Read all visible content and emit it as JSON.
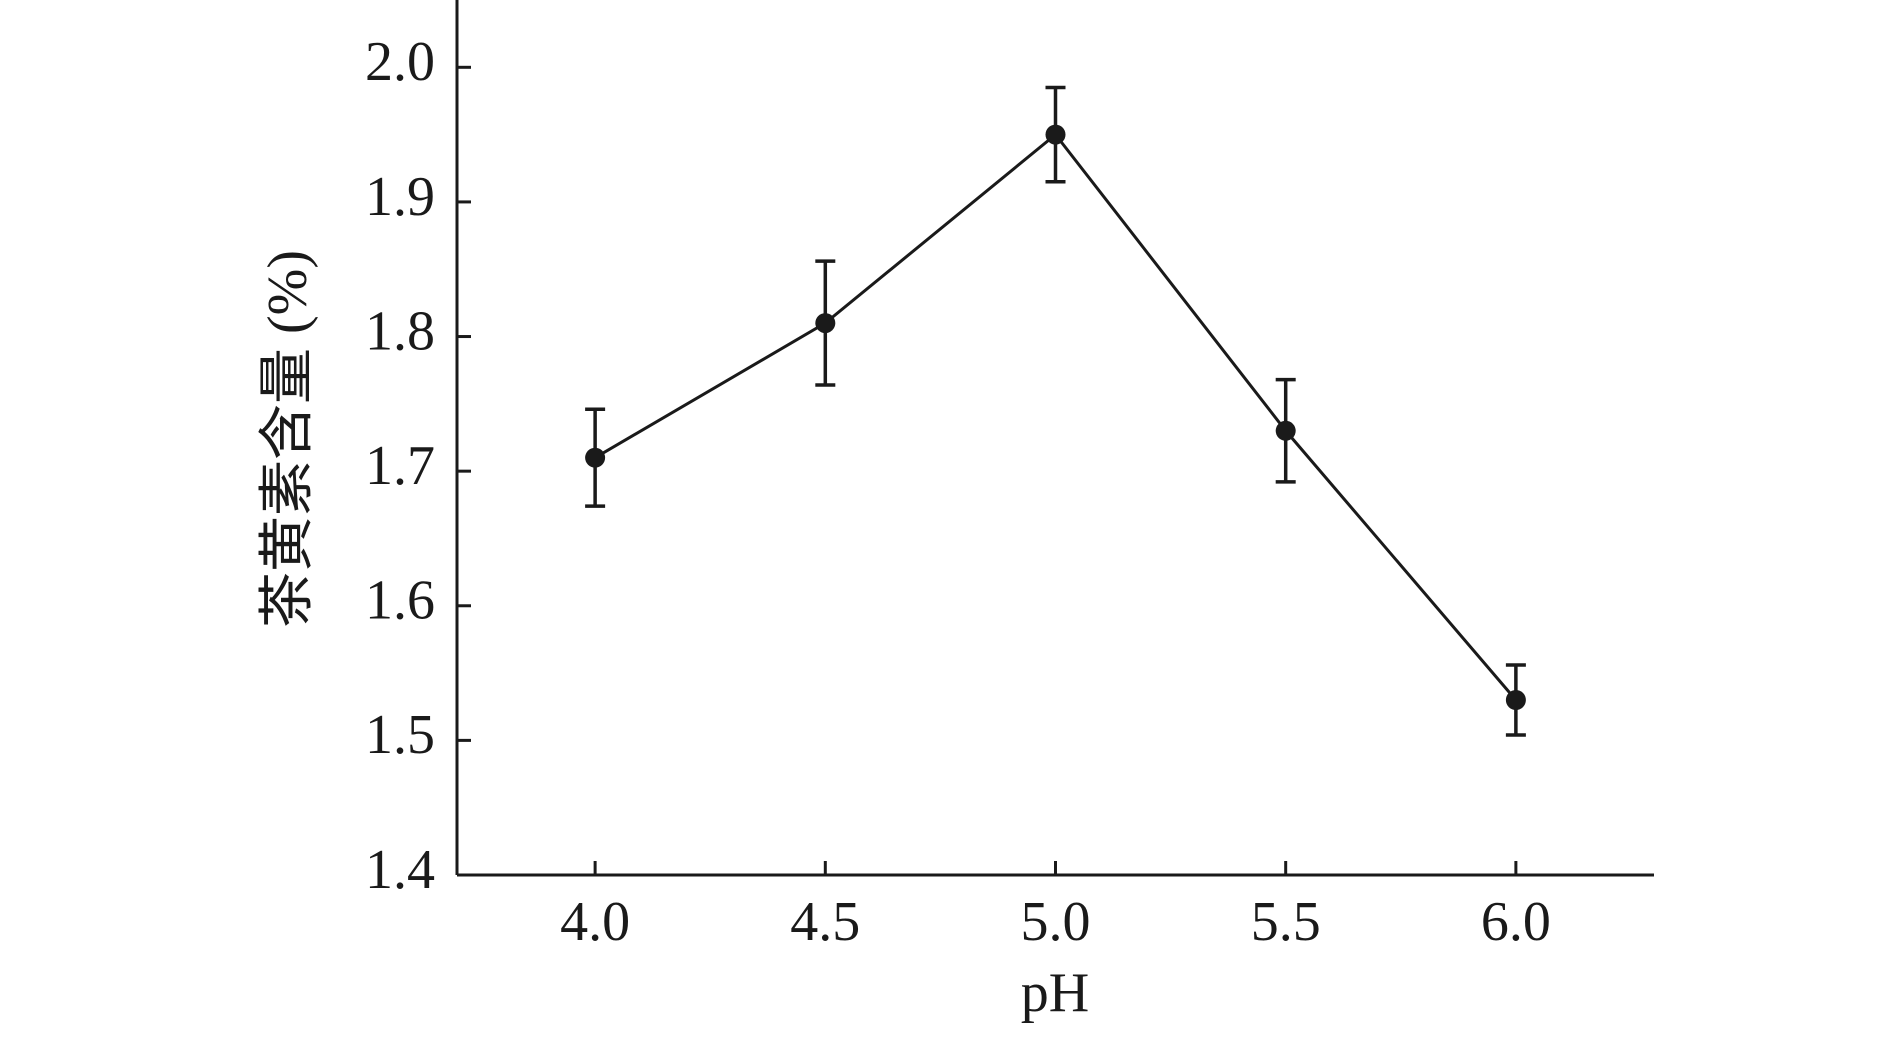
{
  "chart_data": {
    "type": "line",
    "x_label": "pH",
    "y_label": "茶黄素含量 (%)",
    "x": [
      4.0,
      4.5,
      5.0,
      5.5,
      6.0
    ],
    "series": [
      {
        "color": "#1a1a1a",
        "values": [
          1.71,
          1.81,
          1.95,
          1.73,
          1.53
        ],
        "errors": [
          0.036,
          0.046,
          0.035,
          0.038,
          0.026
        ]
      }
    ],
    "xlim": [
      3.7,
      6.3
    ],
    "xticks": [
      {
        "value": 4,
        "label": "4.0"
      },
      {
        "value": 4.5,
        "label": "4.5"
      },
      {
        "value": 5,
        "label": "5.0"
      },
      {
        "value": 5.5,
        "label": "5.5"
      },
      {
        "value": 6,
        "label": "6.0"
      }
    ],
    "ylim": [
      1.4,
      2.05
    ],
    "yticks": [
      1.4,
      1.5,
      1.6,
      1.7,
      1.8,
      1.9,
      {
        "value": 2,
        "label": "2.0"
      }
    ],
    "grid": false
  }
}
